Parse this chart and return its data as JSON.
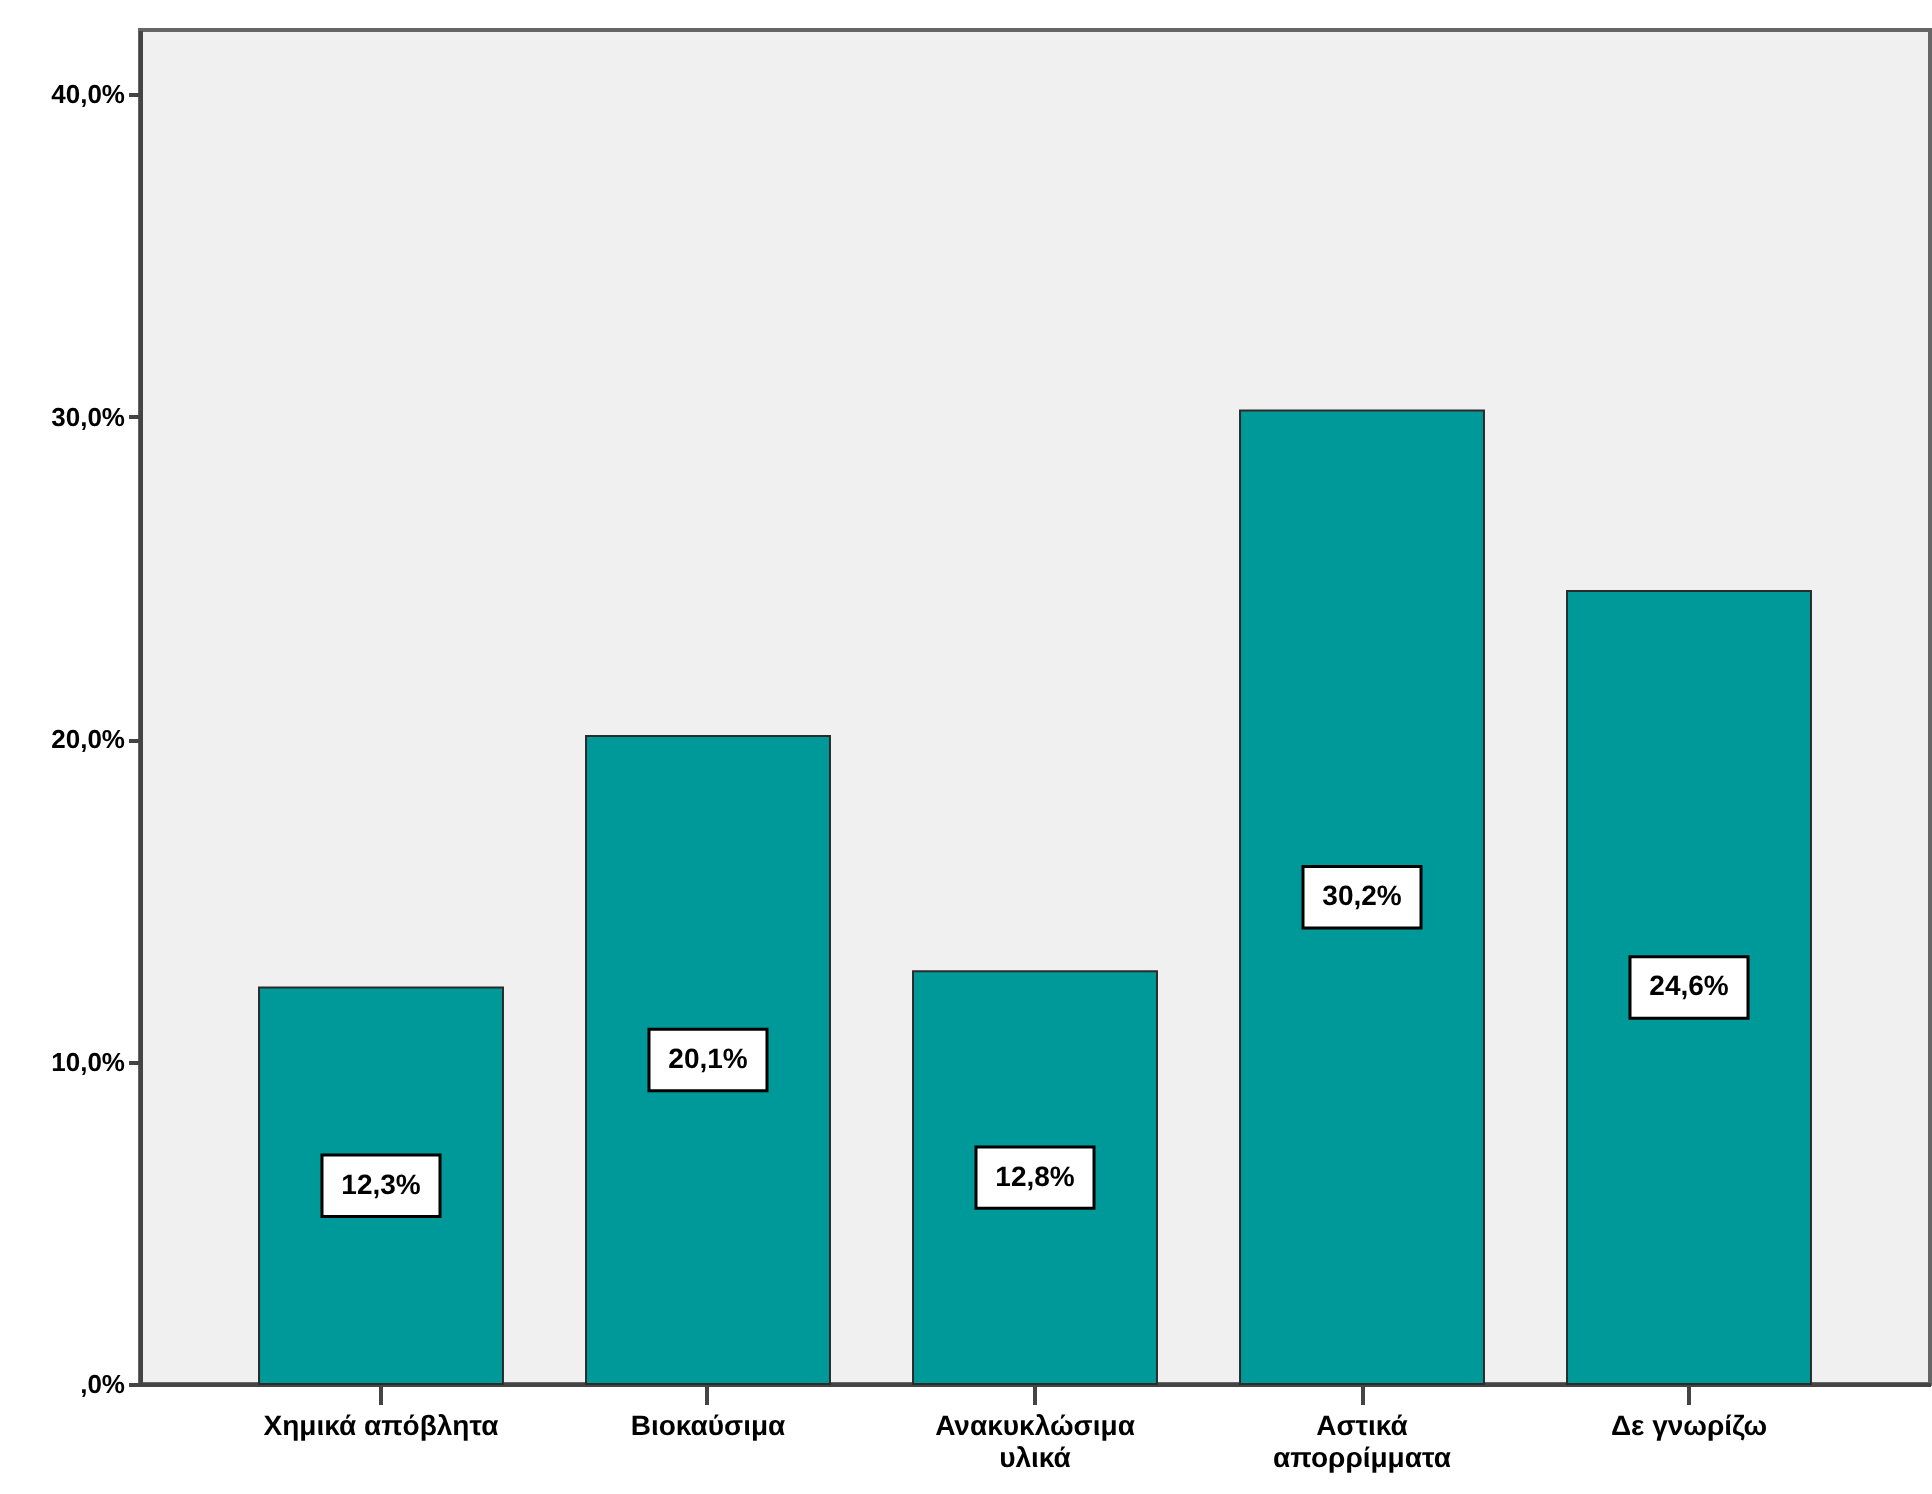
{
  "chart_data": {
    "type": "bar",
    "categories": [
      "Χημικά απόβλητα",
      "Βιοκαύσιμα",
      "Ανακυκλώσιμα υλικά",
      "Αστικά απορρίμματα",
      "Δε γνωρίζω"
    ],
    "values": [
      12.3,
      20.1,
      12.8,
      30.2,
      24.6
    ],
    "value_labels": [
      "12,3%",
      "20,1%",
      "12,8%",
      "30,2%",
      "24,6%"
    ],
    "color": "#009999",
    "ylim": [
      0,
      42
    ],
    "yticks": [
      {
        "value": 0,
        "label": ",0%"
      },
      {
        "value": 10,
        "label": "10,0%"
      },
      {
        "value": 20,
        "label": "20,0%"
      },
      {
        "value": 30,
        "label": "30,0%"
      },
      {
        "value": 40,
        "label": "40,0%"
      }
    ]
  }
}
